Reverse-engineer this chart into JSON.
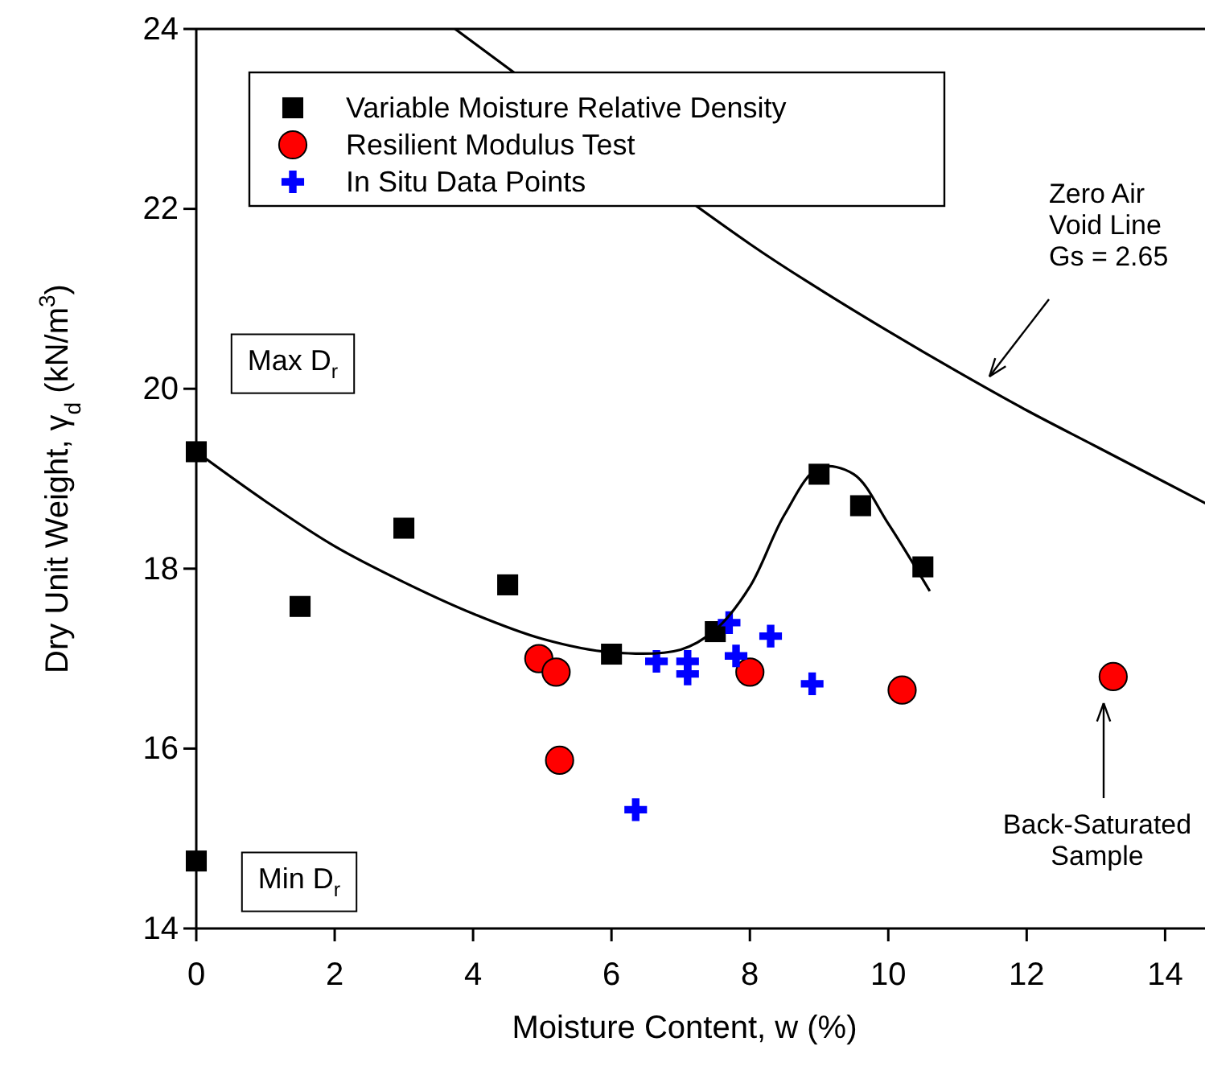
{
  "chart_data": {
    "type": "scatter",
    "xlabel": "Moisture Content, w (%)",
    "ylabel": "Dry Unit Weight, γ$_{d}$ (kN/m$^{3}$)",
    "xlim": [
      0,
      14.6
    ],
    "ylim": [
      14,
      24
    ],
    "xticks": [
      0,
      2,
      4,
      6,
      8,
      10,
      12,
      14
    ],
    "yticks": [
      14,
      16,
      18,
      20,
      22,
      24
    ],
    "grid": false,
    "legend": "top left",
    "series": [
      {
        "name": "Variable Moisture Relative Density",
        "type": "scatter",
        "marker": "square",
        "color": "#000000",
        "x": [
          0,
          1.5,
          3,
          4.5,
          6,
          7.5,
          9,
          9.6,
          10.5,
          0
        ],
        "values": [
          19.3,
          17.58,
          18.45,
          17.82,
          17.05,
          17.3,
          19.05,
          18.7,
          18.02,
          14.75
        ]
      },
      {
        "name": "Resilient Modulus Test",
        "type": "scatter",
        "marker": "circle",
        "color": "#ff0000",
        "x": [
          4.95,
          5.2,
          5.25,
          8.0,
          10.2,
          13.25
        ],
        "values": [
          17.0,
          16.85,
          15.87,
          16.85,
          16.65,
          16.8
        ]
      },
      {
        "name": "In Situ Data Points",
        "type": "scatter",
        "marker": "cross",
        "color": "#0000ff",
        "x": [
          6.35,
          6.65,
          7.1,
          7.1,
          7.7,
          7.8,
          8.3,
          8.9
        ],
        "values": [
          15.32,
          16.97,
          16.83,
          16.97,
          17.4,
          17.03,
          17.25,
          16.72
        ]
      },
      {
        "type": "line",
        "marker": "none",
        "line_style": "solid",
        "color": "#000000",
        "x": [
          0,
          1,
          2,
          3,
          4,
          5,
          6,
          7,
          7.5,
          8,
          8.5,
          9,
          9.5,
          10,
          10.6
        ],
        "values": [
          19.3,
          18.75,
          18.25,
          17.85,
          17.5,
          17.22,
          17.07,
          17.1,
          17.32,
          17.8,
          18.6,
          19.12,
          19.05,
          18.5,
          17.75
        ]
      },
      {
        "type": "line",
        "marker": "none",
        "line_style": "solid",
        "color": "#000000",
        "x": [
          3.74,
          5,
          6,
          7,
          8,
          9,
          10,
          11,
          12,
          13,
          14.6
        ],
        "values": [
          24.0,
          null,
          null,
          null,
          21.61,
          21.11,
          20.64,
          20.19,
          19.76,
          19.36,
          18.72
        ]
      }
    ],
    "annotations": [
      "Zero Air\nVoid Line\nGs = 2.65",
      "Back-Saturated\nSample",
      "Max D$_{r}$",
      "Min D$_{r}$"
    ]
  }
}
